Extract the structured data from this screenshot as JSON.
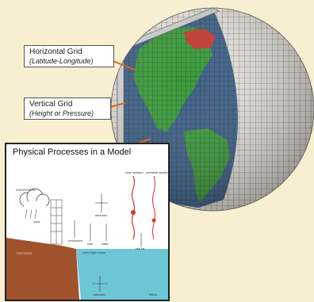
{
  "callouts": {
    "horizontal_grid": {
      "title": "Horizontal Grid",
      "subtitle": "(Latitude-Longitude)"
    },
    "vertical_grid": {
      "title": "Vertical Grid",
      "subtitle": "(Height or Pressure)"
    }
  },
  "inset": {
    "title": "Physical Processes in a Model",
    "labels": {
      "atmosphere": "ATMOSPHERE",
      "continent": "CONTINENT",
      "ocean": "OCEAN",
      "solar_radiation": "solar radiation",
      "terrestrial_radiation": "terrestrial radiation",
      "advection": "advection",
      "momentum": "momentum",
      "heat": "heat",
      "water": "water",
      "snow": "snow",
      "sea_ice": "sea ice",
      "mixed_layer_ocean": "mixed layer ocean",
      "ocean_advection": "advection",
      "credit": "NOAA"
    }
  },
  "colors": {
    "background": "#f7efcf",
    "land": "#3a9a3a",
    "ocean": "#3d5f86",
    "grid_shell": "#e4e2da",
    "inset_land": "#a0522d",
    "inset_ocean": "#6cc6d8",
    "arrow": "#d8671a"
  }
}
